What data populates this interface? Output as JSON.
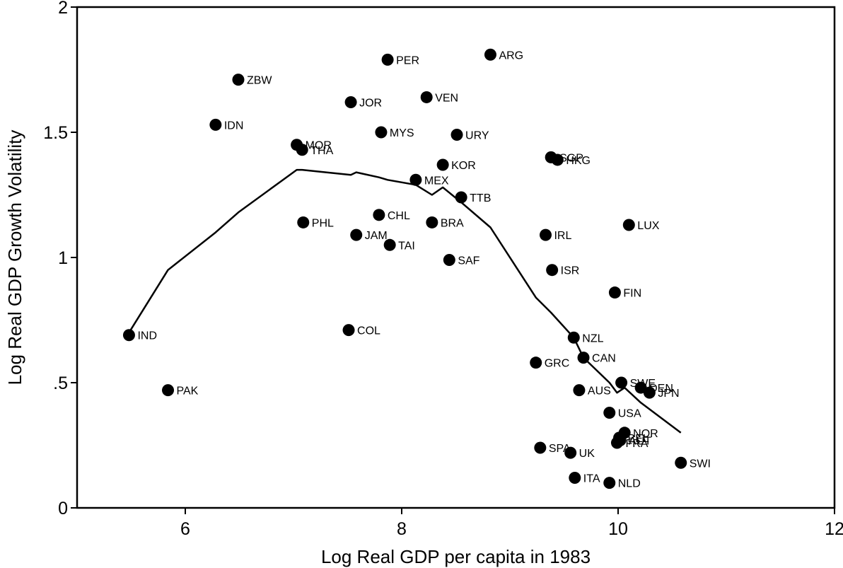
{
  "chart_data": {
    "type": "scatter",
    "xlabel": "Log Real GDP per capita in 1983",
    "ylabel": "Log Real GDP Growth Volatility",
    "xlim": [
      5,
      12
    ],
    "ylim": [
      0,
      2
    ],
    "x_ticks": [
      {
        "value": 6,
        "label": "6"
      },
      {
        "value": 8,
        "label": "8"
      },
      {
        "value": 10,
        "label": "10"
      },
      {
        "value": 12,
        "label": "12"
      }
    ],
    "y_ticks": [
      {
        "value": 0,
        "label": "0"
      },
      {
        "value": 0.5,
        "label": ".5"
      },
      {
        "value": 1,
        "label": "1"
      },
      {
        "value": 1.5,
        "label": "1.5"
      },
      {
        "value": 2,
        "label": "2"
      }
    ],
    "grid": false,
    "points": [
      {
        "label": "IND",
        "x": 5.48,
        "y": 0.69
      },
      {
        "label": "PAK",
        "x": 5.84,
        "y": 0.47
      },
      {
        "label": "IDN",
        "x": 6.28,
        "y": 1.53
      },
      {
        "label": "ZBW",
        "x": 6.49,
        "y": 1.71
      },
      {
        "label": "MOR",
        "x": 7.03,
        "y": 1.45
      },
      {
        "label": "THA",
        "x": 7.08,
        "y": 1.43
      },
      {
        "label": "PHL",
        "x": 7.09,
        "y": 1.14
      },
      {
        "label": "COL",
        "x": 7.51,
        "y": 0.71
      },
      {
        "label": "JOR",
        "x": 7.53,
        "y": 1.62
      },
      {
        "label": "JAM",
        "x": 7.58,
        "y": 1.09
      },
      {
        "label": "CHL",
        "x": 7.79,
        "y": 1.17
      },
      {
        "label": "MYS",
        "x": 7.81,
        "y": 1.5
      },
      {
        "label": "PER",
        "x": 7.87,
        "y": 1.79
      },
      {
        "label": "TAI",
        "x": 7.89,
        "y": 1.05
      },
      {
        "label": "MEX",
        "x": 8.13,
        "y": 1.31
      },
      {
        "label": "VEN",
        "x": 8.23,
        "y": 1.64
      },
      {
        "label": "BRA",
        "x": 8.28,
        "y": 1.14
      },
      {
        "label": "KOR",
        "x": 8.38,
        "y": 1.37
      },
      {
        "label": "SAF",
        "x": 8.44,
        "y": 0.99
      },
      {
        "label": "URY",
        "x": 8.51,
        "y": 1.49
      },
      {
        "label": "TTB",
        "x": 8.55,
        "y": 1.24
      },
      {
        "label": "ARG",
        "x": 8.82,
        "y": 1.81
      },
      {
        "label": "GRC",
        "x": 9.24,
        "y": 0.58
      },
      {
        "label": "SPA",
        "x": 9.28,
        "y": 0.24
      },
      {
        "label": "IRL",
        "x": 9.33,
        "y": 1.09
      },
      {
        "label": "SGP",
        "x": 9.38,
        "y": 1.4
      },
      {
        "label": "ISR",
        "x": 9.39,
        "y": 0.95
      },
      {
        "label": "HKG",
        "x": 9.44,
        "y": 1.39
      },
      {
        "label": "UK",
        "x": 9.56,
        "y": 0.22
      },
      {
        "label": "NZL",
        "x": 9.59,
        "y": 0.68
      },
      {
        "label": "ITA",
        "x": 9.6,
        "y": 0.12
      },
      {
        "label": "AUS",
        "x": 9.64,
        "y": 0.47
      },
      {
        "label": "CAN",
        "x": 9.68,
        "y": 0.6
      },
      {
        "label": "USA",
        "x": 9.92,
        "y": 0.38
      },
      {
        "label": "NLD",
        "x": 9.92,
        "y": 0.1
      },
      {
        "label": "FIN",
        "x": 9.97,
        "y": 0.86
      },
      {
        "label": "FRA",
        "x": 9.99,
        "y": 0.26
      },
      {
        "label": "BEL",
        "x": 10.01,
        "y": 0.28
      },
      {
        "label": "AUT",
        "x": 10.02,
        "y": 0.27
      },
      {
        "label": "SWE",
        "x": 10.03,
        "y": 0.5
      },
      {
        "label": "NOR",
        "x": 10.06,
        "y": 0.3
      },
      {
        "label": "LUX",
        "x": 10.1,
        "y": 1.13
      },
      {
        "label": "DEN",
        "x": 10.21,
        "y": 0.48
      },
      {
        "label": "JPN",
        "x": 10.29,
        "y": 0.46
      },
      {
        "label": "SWI",
        "x": 10.58,
        "y": 0.18
      }
    ],
    "series": [
      {
        "type": "line",
        "x": [
          5.48,
          5.84,
          6.28,
          6.49,
          7.03,
          7.08,
          7.3,
          7.53,
          7.58,
          7.79,
          7.87,
          8.13,
          8.28,
          8.38,
          8.55,
          8.82,
          9.24,
          9.38,
          9.59,
          9.68,
          9.92,
          9.99,
          10.06,
          10.21,
          10.58
        ],
        "y": [
          0.7,
          0.95,
          1.1,
          1.18,
          1.35,
          1.35,
          1.34,
          1.33,
          1.34,
          1.32,
          1.31,
          1.29,
          1.25,
          1.28,
          1.22,
          1.12,
          0.84,
          0.78,
          0.68,
          0.6,
          0.5,
          0.46,
          0.48,
          0.42,
          0.3
        ]
      }
    ]
  }
}
